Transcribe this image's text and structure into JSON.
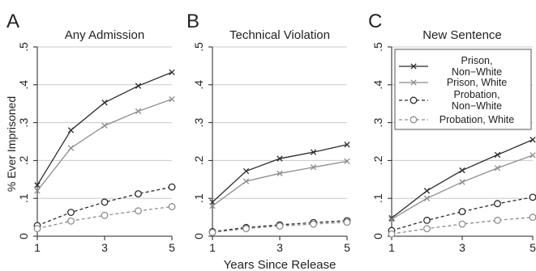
{
  "figure": {
    "ylabel": "% Ever Imprisoned",
    "xlabel": "Years Since Release"
  },
  "chart_data": [
    {
      "type": "line",
      "panel_letter": "A",
      "title": "Any Admission",
      "x": [
        1,
        2,
        3,
        4,
        5
      ],
      "xticks": [
        "1",
        "3",
        "5"
      ],
      "xtick_values": [
        1,
        3,
        5
      ],
      "yticks": [
        "0",
        ".1",
        ".2",
        ".3",
        ".4",
        ".5"
      ],
      "ytick_values": [
        0,
        0.1,
        0.2,
        0.3,
        0.4,
        0.5
      ],
      "xlim": [
        1,
        5
      ],
      "ylim": [
        0,
        0.5
      ],
      "grid": true,
      "series": [
        {
          "name": "Prison, Non−White",
          "values": [
            0.135,
            0.28,
            0.353,
            0.397,
            0.433
          ]
        },
        {
          "name": "Prison, White",
          "values": [
            0.12,
            0.233,
            0.292,
            0.33,
            0.362
          ]
        },
        {
          "name": "Probation, Non−White",
          "values": [
            0.028,
            0.063,
            0.09,
            0.112,
            0.13
          ]
        },
        {
          "name": "Probation, White",
          "values": [
            0.02,
            0.04,
            0.055,
            0.067,
            0.078
          ]
        }
      ]
    },
    {
      "type": "line",
      "panel_letter": "B",
      "title": "Technical Violation",
      "x": [
        1,
        2,
        3,
        4,
        5
      ],
      "xticks": [
        "1",
        "3",
        "5"
      ],
      "xtick_values": [
        1,
        3,
        5
      ],
      "yticks": [
        "0",
        ".1",
        ".2",
        ".3",
        ".4",
        ".5"
      ],
      "ytick_values": [
        0,
        0.1,
        0.2,
        0.3,
        0.4,
        0.5
      ],
      "xlim": [
        1,
        5
      ],
      "ylim": [
        0,
        0.5
      ],
      "grid": true,
      "series": [
        {
          "name": "Prison, Non−White",
          "values": [
            0.09,
            0.172,
            0.205,
            0.222,
            0.242
          ]
        },
        {
          "name": "Prison, White",
          "values": [
            0.08,
            0.145,
            0.166,
            0.182,
            0.198
          ]
        },
        {
          "name": "Probation, Non−White",
          "values": [
            0.012,
            0.023,
            0.03,
            0.036,
            0.041
          ]
        },
        {
          "name": "Probation, White",
          "values": [
            0.01,
            0.02,
            0.027,
            0.032,
            0.037
          ]
        }
      ]
    },
    {
      "type": "line",
      "panel_letter": "C",
      "title": "New Sentence",
      "x": [
        1,
        2,
        3,
        4,
        5
      ],
      "xticks": [
        "1",
        "3",
        "5"
      ],
      "xtick_values": [
        1,
        3,
        5
      ],
      "yticks": [
        "0",
        ".1",
        ".2",
        ".3",
        ".4",
        ".5"
      ],
      "ytick_values": [
        0,
        0.1,
        0.2,
        0.3,
        0.4,
        0.5
      ],
      "xlim": [
        1,
        5
      ],
      "ylim": [
        0,
        0.5
      ],
      "grid": true,
      "legend": "top-right",
      "series": [
        {
          "name": "Prison, Non−White",
          "values": [
            0.048,
            0.12,
            0.174,
            0.215,
            0.255
          ]
        },
        {
          "name": "Prison, White",
          "values": [
            0.045,
            0.1,
            0.143,
            0.18,
            0.214
          ]
        },
        {
          "name": "Probation, Non−White",
          "values": [
            0.015,
            0.042,
            0.065,
            0.086,
            0.103
          ]
        },
        {
          "name": "Probation, White",
          "values": [
            0.006,
            0.02,
            0.032,
            0.042,
            0.05
          ]
        }
      ]
    }
  ],
  "legend": {
    "entries": [
      {
        "line1": "Prison,",
        "line2": "Non−White"
      },
      {
        "line1": "Prison, White",
        "line2": ""
      },
      {
        "line1": "Probation,",
        "line2": "Non−White"
      },
      {
        "line1": "Probation, White",
        "line2": ""
      }
    ]
  },
  "colors": {
    "prison_non_white": "#2b2b2b",
    "prison_white": "#8c8c8c",
    "probation_non_white": "#2b2b2b",
    "probation_white": "#8c8c8c",
    "grid": "#c8c8c8",
    "axis": "#222222"
  },
  "markers": {
    "prison": "x-cross",
    "probation": "hollow-circle"
  }
}
